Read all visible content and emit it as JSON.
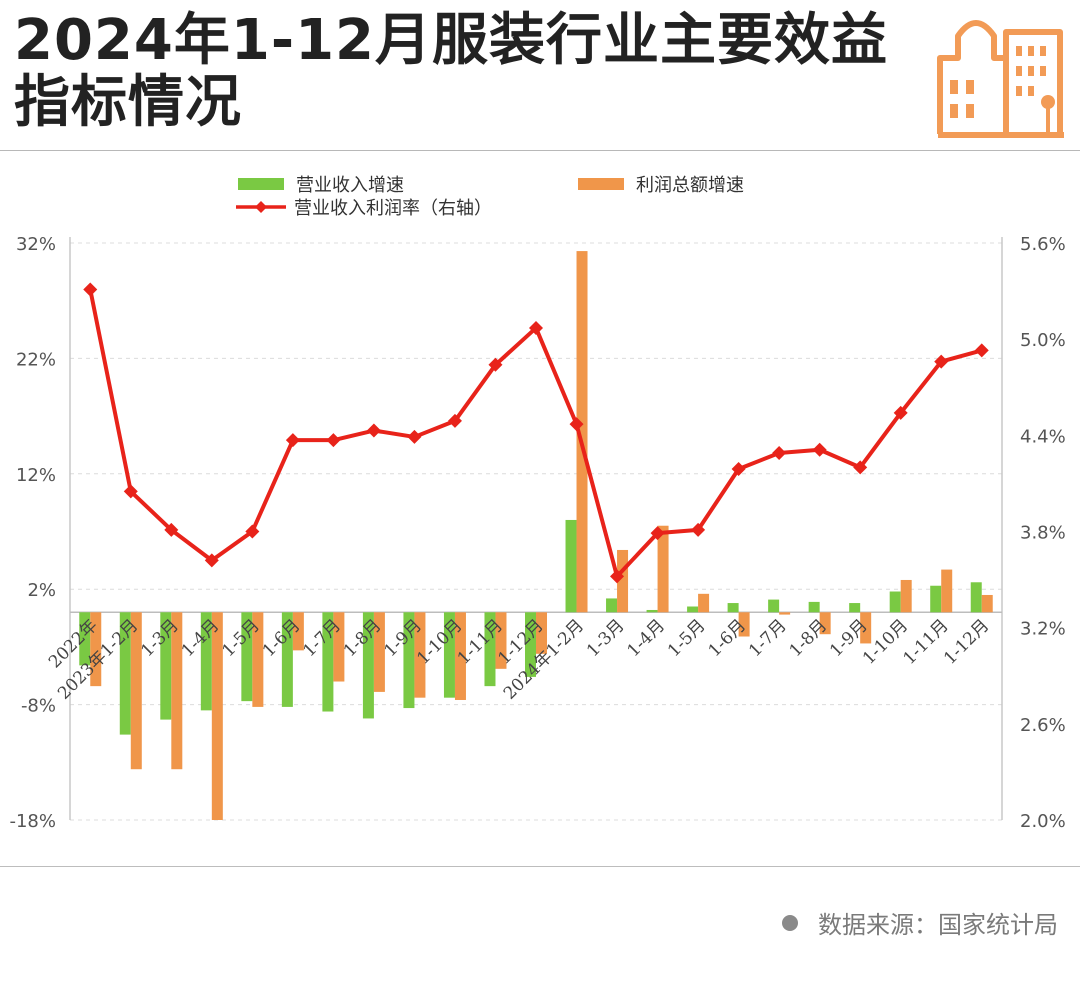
{
  "title": "2024年1-12月服装行业主要效益指标情况",
  "source": "数据来源：国家统计局",
  "icons": {
    "header": "city-buildings-icon",
    "source_dot": "dot-icon"
  },
  "colors": {
    "revenue": "#7ac943",
    "profit": "#f0964a",
    "margin": "#e8231a",
    "title": "#222222",
    "icon": "#f29b56"
  },
  "chart_data": {
    "type": "bar+line",
    "categories": [
      "2022年",
      "2023年1-2月",
      "1-3月",
      "1-4月",
      "1-5月",
      "1-6月",
      "1-7月",
      "1-8月",
      "1-9月",
      "1-10月",
      "1-11月",
      "1-12月",
      "2024年1-2月",
      "1-3月",
      "1-4月",
      "1-5月",
      "1-6月",
      "1-7月",
      "1-8月",
      "1-9月",
      "1-10月",
      "1-11月",
      "1-12月"
    ],
    "series": [
      {
        "name": "营业收入增速",
        "type": "bar",
        "axis": "left",
        "color": "#7ac943",
        "values": [
          -4.6,
          -10.6,
          -9.3,
          -8.5,
          -7.7,
          -8.2,
          -8.6,
          -9.2,
          -8.3,
          -7.4,
          -6.4,
          -5.6,
          8.0,
          1.2,
          0.2,
          0.5,
          0.8,
          1.1,
          0.9,
          0.8,
          1.8,
          2.3,
          2.6
        ]
      },
      {
        "name": "利润总额增速",
        "type": "bar",
        "axis": "left",
        "color": "#f0964a",
        "values": [
          -6.4,
          -13.6,
          -13.6,
          -18.0,
          -8.2,
          -3.3,
          -6.0,
          -6.9,
          -7.4,
          -7.6,
          -4.9,
          -3.6,
          31.3,
          5.4,
          7.5,
          1.6,
          -2.1,
          -0.2,
          -1.9,
          -2.7,
          2.8,
          3.7,
          1.5
        ]
      },
      {
        "name": "营业收入利润率（右轴）",
        "type": "line",
        "axis": "right",
        "color": "#e8231a",
        "values": [
          5.31,
          4.05,
          3.81,
          3.62,
          3.8,
          4.37,
          4.37,
          4.43,
          4.39,
          4.49,
          4.84,
          5.07,
          4.47,
          3.52,
          3.79,
          3.81,
          4.19,
          4.29,
          4.31,
          4.2,
          4.54,
          4.86,
          4.93
        ]
      }
    ],
    "yaxis_left": {
      "ticks": [
        "32%",
        "22%",
        "12%",
        "2%",
        "-8%",
        "-18%"
      ],
      "min": -18,
      "max": 32
    },
    "yaxis_right": {
      "ticks": [
        "5.6%",
        "5.0%",
        "4.4%",
        "3.8%",
        "3.2%",
        "2.6%",
        "2.0%"
      ],
      "min": 2.0,
      "max": 5.6
    },
    "legend_position": "top",
    "grid": true
  }
}
